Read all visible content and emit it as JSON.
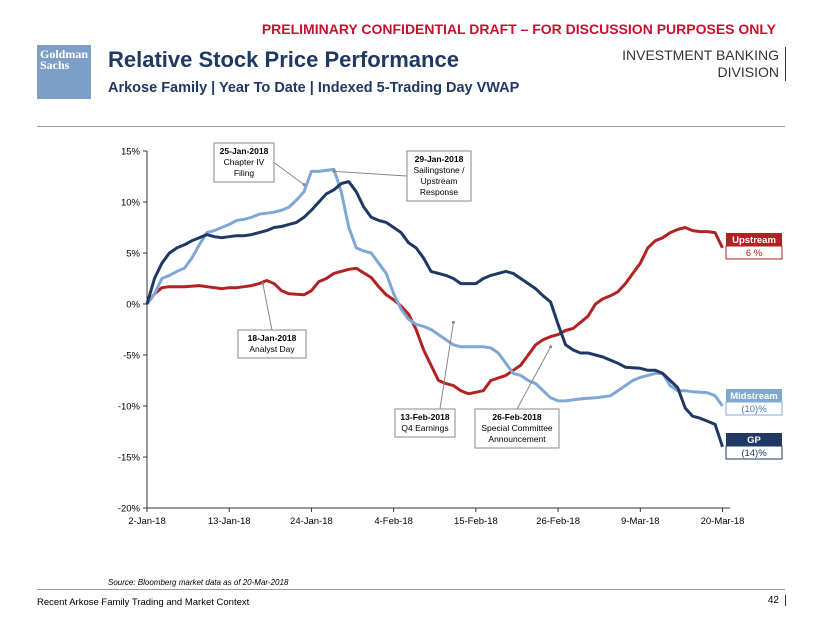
{
  "banner": "PRELIMINARY CONFIDENTIAL DRAFT – FOR DISCUSSION PURPOSES ONLY",
  "logo": {
    "line1": "Goldman",
    "line2": "Sachs"
  },
  "header": {
    "title": "Relative Stock Price Performance",
    "subtitle": "Arkose Family | Year To Date | Indexed 5-Trading Day VWAP",
    "division_line1": "INVESTMENT BANKING",
    "division_line2": "DIVISION"
  },
  "footer": {
    "source": "Source: Bloomberg market data as of 20-Mar-2018",
    "section": "Recent Arkose Family Trading and Market Context",
    "page": "42"
  },
  "colors": {
    "upstream": "#b22222",
    "midstream": "#7fa7d4",
    "gp": "#1f3864"
  },
  "chart_data": {
    "type": "line",
    "title": "Relative Stock Price Performance",
    "xlabel": "",
    "ylabel": "",
    "ylim": [
      -20,
      15
    ],
    "yticks": [
      15,
      10,
      5,
      0,
      -5,
      -10,
      -15,
      -20
    ],
    "ytick_labels": [
      "15%",
      "10%",
      "5%",
      "0%",
      "-5%",
      "-10%",
      "-15%",
      "-20%"
    ],
    "xlim": [
      0,
      78
    ],
    "xticks": [
      0,
      11,
      22,
      33,
      44,
      55,
      66,
      77
    ],
    "xtick_labels": [
      "2-Jan-18",
      "13-Jan-18",
      "24-Jan-18",
      "4-Feb-18",
      "15-Feb-18",
      "26-Feb-18",
      "9-Mar-18",
      "20-Mar-18"
    ],
    "series": [
      {
        "name": "Upstream",
        "end_label": "6 %",
        "color": "#b22222",
        "x": [
          0,
          1,
          2,
          3,
          5,
          7,
          8,
          9,
          10,
          11,
          12,
          13,
          14,
          15,
          16,
          17,
          18,
          19,
          21,
          22,
          23,
          24,
          25,
          27,
          28,
          30,
          31,
          32,
          33,
          34,
          35,
          36,
          37,
          38,
          39,
          40,
          41,
          42,
          43,
          45,
          46,
          48,
          49,
          50,
          51,
          52,
          53,
          54,
          55,
          56,
          57,
          58,
          59,
          60,
          61,
          62,
          63,
          64,
          66,
          67,
          68,
          69,
          70,
          71,
          72,
          73,
          74,
          75,
          76,
          77
        ],
        "values": [
          0,
          1,
          1.6,
          1.7,
          1.7,
          1.8,
          1.7,
          1.6,
          1.5,
          1.6,
          1.6,
          1.7,
          1.8,
          2.0,
          2.3,
          2.0,
          1.3,
          1.0,
          0.9,
          1.3,
          2.2,
          2.5,
          3.0,
          3.4,
          3.5,
          2.6,
          1.7,
          0.9,
          0.4,
          -0.2,
          -1.0,
          -2.5,
          -4.5,
          -6.0,
          -7.5,
          -7.8,
          -8.0,
          -8.5,
          -8.8,
          -8.5,
          -7.5,
          -7.0,
          -6.5,
          -6.0,
          -5.0,
          -4.0,
          -3.5,
          -3.2,
          -3.0,
          -2.6,
          -2.4,
          -1.8,
          -1.2,
          0,
          0.5,
          0.8,
          1.2,
          2.0,
          4.0,
          5.5,
          6.2,
          6.5,
          7.0,
          7.3,
          7.5,
          7.2,
          7.1,
          7.1,
          7.0,
          5.5
        ]
      },
      {
        "name": "Midstream",
        "end_label": "(10)%",
        "color": "#7fa7d4",
        "x": [
          0,
          1,
          2,
          3,
          4,
          5,
          6,
          7,
          8,
          9,
          10,
          11,
          12,
          13,
          14,
          15,
          16,
          17,
          18,
          19,
          20,
          21,
          22,
          23,
          24,
          25,
          26,
          27,
          28,
          29,
          30,
          31,
          32,
          33,
          34,
          35,
          36,
          37,
          38,
          40,
          41,
          42,
          43,
          44,
          45,
          46,
          47,
          48,
          49,
          50,
          51,
          52,
          53,
          54,
          55,
          56,
          57,
          58,
          60,
          62,
          63,
          64,
          65,
          66,
          67,
          68,
          69,
          70,
          71,
          72,
          73,
          75,
          76,
          77
        ],
        "values": [
          0,
          1,
          2.5,
          2.8,
          3.2,
          3.5,
          4.5,
          5.8,
          7.0,
          7.2,
          7.5,
          7.8,
          8.2,
          8.3,
          8.5,
          8.8,
          8.9,
          9.0,
          9.2,
          9.5,
          10.2,
          11.0,
          13.0,
          13.0,
          13.1,
          13.2,
          11.0,
          7.5,
          5.5,
          5.2,
          5.0,
          4.0,
          3.0,
          1.0,
          -0.5,
          -1.5,
          -2.0,
          -2.2,
          -2.5,
          -3.5,
          -4.0,
          -4.2,
          -4.2,
          -4.2,
          -4.2,
          -4.3,
          -4.8,
          -5.8,
          -6.8,
          -7.0,
          -7.5,
          -7.8,
          -8.5,
          -9.2,
          -9.5,
          -9.5,
          -9.4,
          -9.3,
          -9.2,
          -9.0,
          -8.5,
          -8.0,
          -7.5,
          -7.2,
          -7.0,
          -6.8,
          -6.8,
          -8.0,
          -8.5,
          -8.5,
          -8.6,
          -8.7,
          -9.0,
          -10.0
        ]
      },
      {
        "name": "GP",
        "end_label": "(14)%",
        "color": "#1f3864",
        "x": [
          0,
          1,
          2,
          3,
          4,
          5,
          6,
          7,
          8,
          9,
          10,
          11,
          12,
          13,
          14,
          15,
          16,
          17,
          18,
          19,
          20,
          21,
          22,
          23,
          24,
          25,
          26,
          27,
          28,
          29,
          30,
          31,
          32,
          33,
          34,
          35,
          36,
          37,
          38,
          39,
          40,
          41,
          42,
          44,
          45,
          46,
          47,
          48,
          49,
          50,
          51,
          52,
          53,
          54,
          55,
          56,
          57,
          58,
          59,
          60,
          61,
          62,
          63,
          64,
          66,
          67,
          68,
          69,
          70,
          71,
          72,
          73,
          74,
          75,
          76,
          77
        ],
        "values": [
          0,
          2.5,
          4.0,
          5.0,
          5.5,
          5.8,
          6.2,
          6.5,
          6.8,
          6.6,
          6.5,
          6.6,
          6.7,
          6.7,
          6.8,
          7.0,
          7.2,
          7.5,
          7.6,
          7.8,
          8.0,
          8.5,
          9.2,
          10.0,
          10.8,
          11.2,
          11.8,
          12.0,
          11.0,
          9.5,
          8.5,
          8.2,
          8.0,
          7.5,
          7.0,
          6.0,
          5.5,
          4.5,
          3.2,
          3.0,
          2.8,
          2.5,
          2.0,
          2.0,
          2.5,
          2.8,
          3.0,
          3.2,
          3.0,
          2.5,
          2.0,
          1.5,
          0.8,
          0.2,
          -2.0,
          -4.0,
          -4.5,
          -4.8,
          -4.8,
          -5.0,
          -5.2,
          -5.5,
          -5.8,
          -6.2,
          -6.3,
          -6.5,
          -6.5,
          -6.8,
          -7.5,
          -8.2,
          -10.2,
          -11.0,
          -11.2,
          -11.5,
          -11.8,
          -14.0
        ]
      }
    ],
    "annotations": [
      {
        "label": "25-Jan-2018",
        "text": [
          "Chapter IV",
          "Filing"
        ],
        "x": 21,
        "y": 11.7
      },
      {
        "label": "29-Jan-2018",
        "text": [
          "Sailingstone /",
          "Upstream",
          "Response"
        ],
        "x": 25,
        "y": 13.0
      },
      {
        "label": "18-Jan-2018",
        "text": [
          "Analyst Day"
        ],
        "x": 15.5,
        "y": 2.0
      },
      {
        "label": "13-Feb-2018",
        "text": [
          "Q4 Earnings"
        ],
        "x": 41,
        "y": -1.8
      },
      {
        "label": "26-Feb-2018",
        "text": [
          "Special Committee",
          "Announcement"
        ],
        "x": 54,
        "y": -4.2
      }
    ]
  }
}
